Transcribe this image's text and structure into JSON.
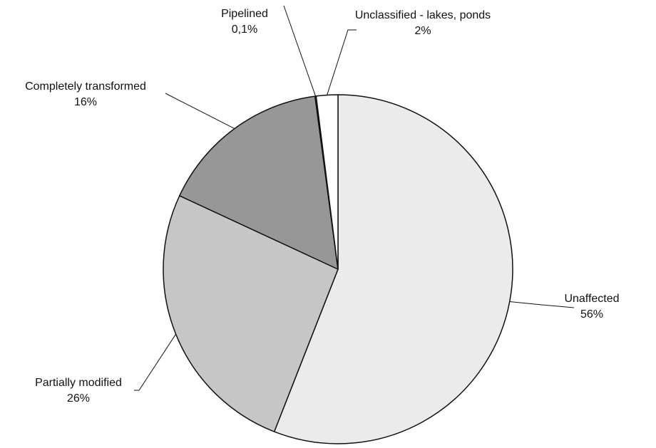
{
  "chart_data": {
    "type": "pie",
    "categories": [
      "Unaffected",
      "Partially modified",
      "Completely transformed",
      "Pipelined",
      "Unclassified - lakes, ponds"
    ],
    "values": [
      56,
      26,
      16,
      0.1,
      2
    ],
    "value_labels": [
      "56%",
      "26%",
      "16%",
      "0,1%",
      "2%"
    ],
    "colors": [
      "#ebebeb",
      "#c6c6c6",
      "#979797",
      "#111111",
      "#ffffff"
    ]
  }
}
